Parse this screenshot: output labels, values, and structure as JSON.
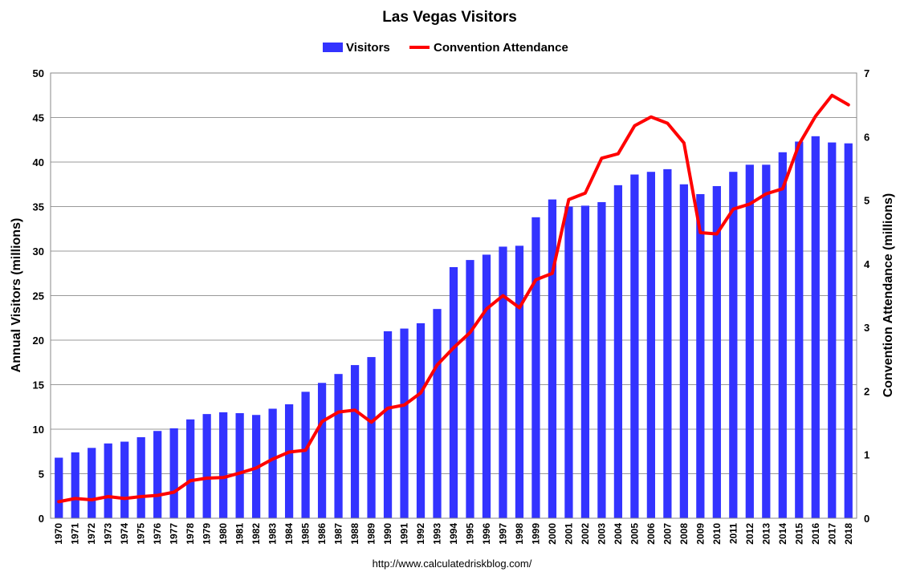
{
  "chart_data": {
    "type": "bar",
    "title": "Las Vegas Visitors",
    "ylabel_left": "Annual Visitors (millions)",
    "ylabel_right": "Convention Attendance (millions)",
    "source": "http://www.calculatedriskblog.com/",
    "ylim_left": [
      0,
      50
    ],
    "ylim_right": [
      0,
      7
    ],
    "yticks_left": [
      "0",
      "5",
      "10",
      "15",
      "20",
      "25",
      "30",
      "35",
      "40",
      "45",
      "50"
    ],
    "yticks_right": [
      "0",
      "1",
      "2",
      "3",
      "4",
      "5",
      "6",
      "7"
    ],
    "grid": true,
    "legend_position": "top-center",
    "categories": [
      "1970",
      "1971",
      "1972",
      "1973",
      "1974",
      "1975",
      "1976",
      "1977",
      "1978",
      "1979",
      "1980",
      "1981",
      "1982",
      "1983",
      "1984",
      "1985",
      "1986",
      "1987",
      "1988",
      "1989",
      "1990",
      "1991",
      "1992",
      "1993",
      "1994",
      "1995",
      "1996",
      "1997",
      "1998",
      "1999",
      "2000",
      "2001",
      "2002",
      "2003",
      "2004",
      "2005",
      "2006",
      "2007",
      "2008",
      "2009",
      "2010",
      "2011",
      "2012",
      "2013",
      "2014",
      "2015",
      "2016",
      "2017",
      "2018"
    ],
    "series": [
      {
        "name": "Visitors",
        "type": "bar",
        "axis": "left",
        "color": "#3333ff",
        "values": [
          6.8,
          7.4,
          7.9,
          8.4,
          8.6,
          9.1,
          9.8,
          10.1,
          11.1,
          11.7,
          11.9,
          11.8,
          11.6,
          12.3,
          12.8,
          14.2,
          15.2,
          16.2,
          17.2,
          18.1,
          21.0,
          21.3,
          21.9,
          23.5,
          28.2,
          29.0,
          29.6,
          30.5,
          30.6,
          33.8,
          35.8,
          35.0,
          35.1,
          35.5,
          37.4,
          38.6,
          38.9,
          39.2,
          37.5,
          36.4,
          37.3,
          38.9,
          39.7,
          39.7,
          41.1,
          42.3,
          42.9,
          42.2,
          42.1
        ]
      },
      {
        "name": "Convention Attendance",
        "type": "line",
        "axis": "right",
        "color": "#ff0000",
        "values": [
          0.26,
          0.31,
          0.29,
          0.34,
          0.31,
          0.34,
          0.36,
          0.41,
          0.59,
          0.63,
          0.64,
          0.71,
          0.79,
          0.93,
          1.04,
          1.07,
          1.52,
          1.67,
          1.7,
          1.51,
          1.73,
          1.78,
          1.97,
          2.41,
          2.68,
          2.92,
          3.29,
          3.5,
          3.31,
          3.75,
          3.85,
          5.01,
          5.11,
          5.66,
          5.73,
          6.17,
          6.31,
          6.21,
          5.9,
          4.49,
          4.47,
          4.86,
          4.94,
          5.1,
          5.18,
          5.88,
          6.32,
          6.65,
          6.5
        ]
      }
    ]
  }
}
